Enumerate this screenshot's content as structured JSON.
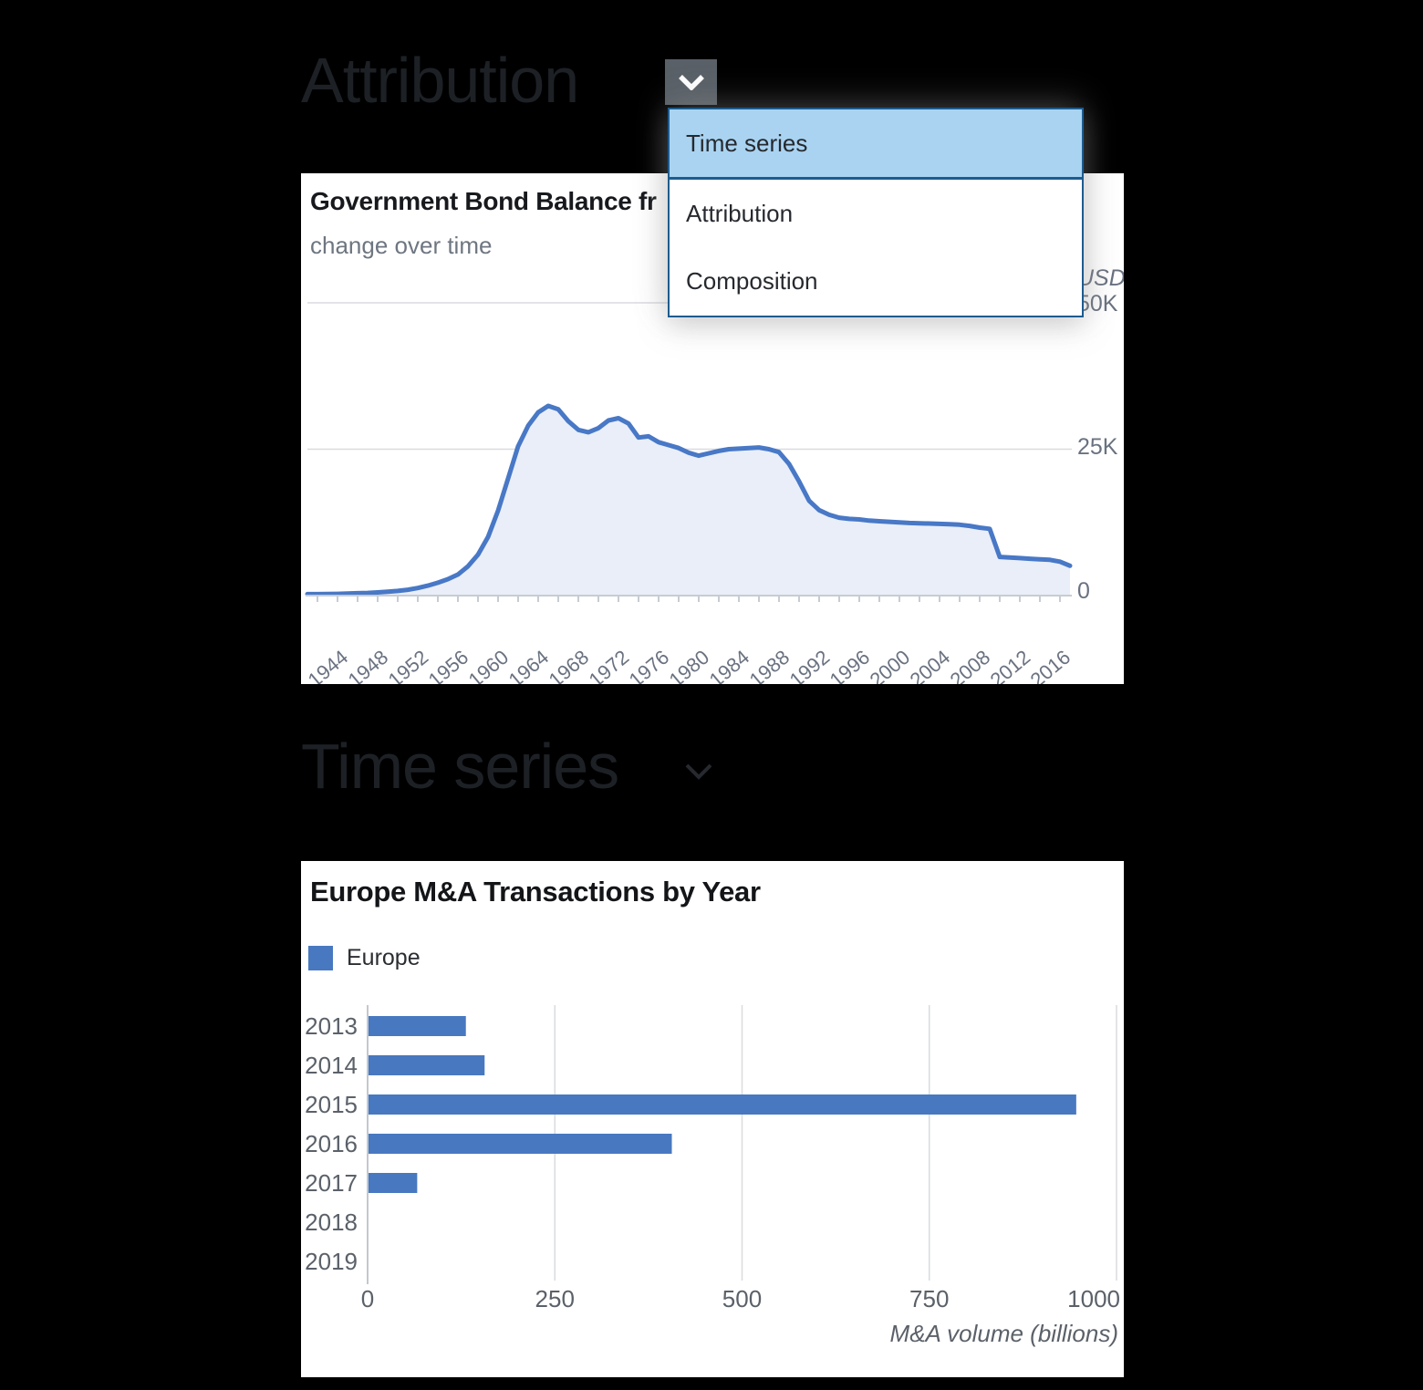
{
  "page": {
    "background": "#000000"
  },
  "sections": [
    {
      "heading": "Attribution"
    },
    {
      "heading": "Time series"
    }
  ],
  "dropdown": {
    "items": [
      {
        "label": "Time series",
        "selected": true
      },
      {
        "label": "Attribution",
        "selected": false
      },
      {
        "label": "Composition",
        "selected": false
      }
    ],
    "selected_bg": "#a9d3f1",
    "border_color": "#1e5b8e",
    "button_bg": "#596067"
  },
  "chart_data": [
    {
      "type": "area",
      "title": "Government Bond Balance fr",
      "subtitle": "change over time",
      "unit_label": "USD",
      "y_tick_labels": [
        "50K",
        "25K",
        "0"
      ],
      "y_ticks_thousands": [
        50,
        25,
        0
      ],
      "ylim_thousands": [
        0,
        50
      ],
      "x_tick_labels": [
        "1944",
        "1948",
        "1952",
        "1956",
        "1960",
        "1964",
        "1968",
        "1972",
        "1976",
        "1980",
        "1984",
        "1988",
        "1992",
        "1996",
        "2000",
        "2004",
        "2008",
        "2012",
        "2016"
      ],
      "x_years": [
        1941,
        1942,
        1943,
        1944,
        1945,
        1946,
        1947,
        1948,
        1949,
        1950,
        1951,
        1952,
        1953,
        1954,
        1955,
        1956,
        1957,
        1958,
        1959,
        1960,
        1961,
        1962,
        1963,
        1964,
        1965,
        1966,
        1967,
        1968,
        1969,
        1970,
        1971,
        1972,
        1973,
        1974,
        1975,
        1976,
        1977,
        1978,
        1979,
        1980,
        1981,
        1982,
        1983,
        1984,
        1985,
        1986,
        1987,
        1988,
        1989,
        1990,
        1991,
        1992,
        1993,
        1994,
        1995,
        1996,
        1997,
        1998,
        1999,
        2000,
        2001,
        2002,
        2003,
        2004,
        2005,
        2006,
        2007,
        2008,
        2009,
        2010,
        2011,
        2012,
        2013,
        2014,
        2015,
        2016,
        2017
      ],
      "values_thousands": [
        0.25,
        0.25,
        0.28,
        0.3,
        0.35,
        0.4,
        0.45,
        0.55,
        0.65,
        0.8,
        1.0,
        1.3,
        1.7,
        2.2,
        2.8,
        3.6,
        5.0,
        7.0,
        10.0,
        14.5,
        20.0,
        25.5,
        29.0,
        31.3,
        32.4,
        31.8,
        29.8,
        28.3,
        27.9,
        28.6,
        29.9,
        30.3,
        29.4,
        27.0,
        27.2,
        26.2,
        25.7,
        25.2,
        24.4,
        23.9,
        24.3,
        24.7,
        25.0,
        25.1,
        25.2,
        25.3,
        25.0,
        24.5,
        22.5,
        19.5,
        16.2,
        14.6,
        13.8,
        13.3,
        13.1,
        13.0,
        12.8,
        12.7,
        12.6,
        12.5,
        12.4,
        12.35,
        12.3,
        12.25,
        12.2,
        12.1,
        11.9,
        11.6,
        11.4,
        6.6,
        6.5,
        6.4,
        6.3,
        6.2,
        6.1,
        5.8,
        5.1
      ],
      "line_color": "#4878c6",
      "fill_color": "#e9eef8",
      "grid": true
    },
    {
      "type": "bar",
      "orientation": "horizontal",
      "title": "Europe M&A Transactions by Year",
      "legend": [
        "Europe"
      ],
      "categories": [
        "2013",
        "2014",
        "2015",
        "2016",
        "2017",
        "2018",
        "2019"
      ],
      "values": [
        130,
        155,
        945,
        405,
        65,
        0,
        0
      ],
      "x_ticks": [
        0,
        250,
        500,
        750,
        1000
      ],
      "xlim": [
        0,
        1000
      ],
      "xlabel": "M&A volume (billions)",
      "bar_color": "#4878c0",
      "grid": true,
      "legend_position": "top-left"
    }
  ]
}
